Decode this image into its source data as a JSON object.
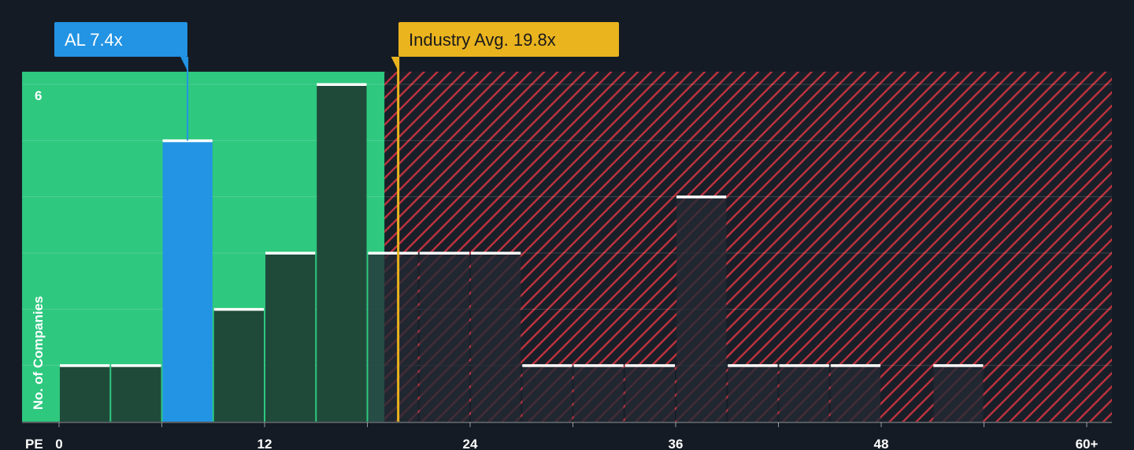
{
  "chart_data": {
    "type": "bar",
    "xlabel": "PE",
    "ylabel": "No. of Companies",
    "x_ticks": [
      "0",
      "12",
      "24",
      "36",
      "48",
      "60+"
    ],
    "x_tick_values": [
      0,
      12,
      24,
      36,
      48,
      60
    ],
    "y_ticks": [
      "6"
    ],
    "y_tick_values": [
      6
    ],
    "xlim": [
      0,
      60
    ],
    "ylim": [
      0,
      6.2
    ],
    "bin_width": 3,
    "bins": [
      {
        "start": 0,
        "count": 1
      },
      {
        "start": 3,
        "count": 1
      },
      {
        "start": 6,
        "count": 5,
        "highlight": true
      },
      {
        "start": 9,
        "count": 2
      },
      {
        "start": 12,
        "count": 3
      },
      {
        "start": 15,
        "count": 6
      },
      {
        "start": 18,
        "count": 3
      },
      {
        "start": 21,
        "count": 3
      },
      {
        "start": 24,
        "count": 3
      },
      {
        "start": 27,
        "count": 1
      },
      {
        "start": 30,
        "count": 1
      },
      {
        "start": 33,
        "count": 1
      },
      {
        "start": 36,
        "count": 4
      },
      {
        "start": 39,
        "count": 1
      },
      {
        "start": 42,
        "count": 1
      },
      {
        "start": 45,
        "count": 1
      },
      {
        "start": 48,
        "count": 0
      },
      {
        "start": 51,
        "count": 1
      }
    ],
    "company": {
      "label": "AL 7.4x",
      "value": 7.4
    },
    "industry": {
      "label": "Industry Avg. 19.8x",
      "value": 19.8
    },
    "fair_zone_end": 19,
    "grid": true,
    "colors": {
      "background": "#151b24",
      "undervalued_zone": "#2ec87f",
      "overvalued_hatch": "#c0333f",
      "bar": "#1f4a3a",
      "bar_over": "#2a2530",
      "company_bar": "#2394e4",
      "industry_line": "#eab41f",
      "bar_cap": "#ffffff"
    }
  }
}
